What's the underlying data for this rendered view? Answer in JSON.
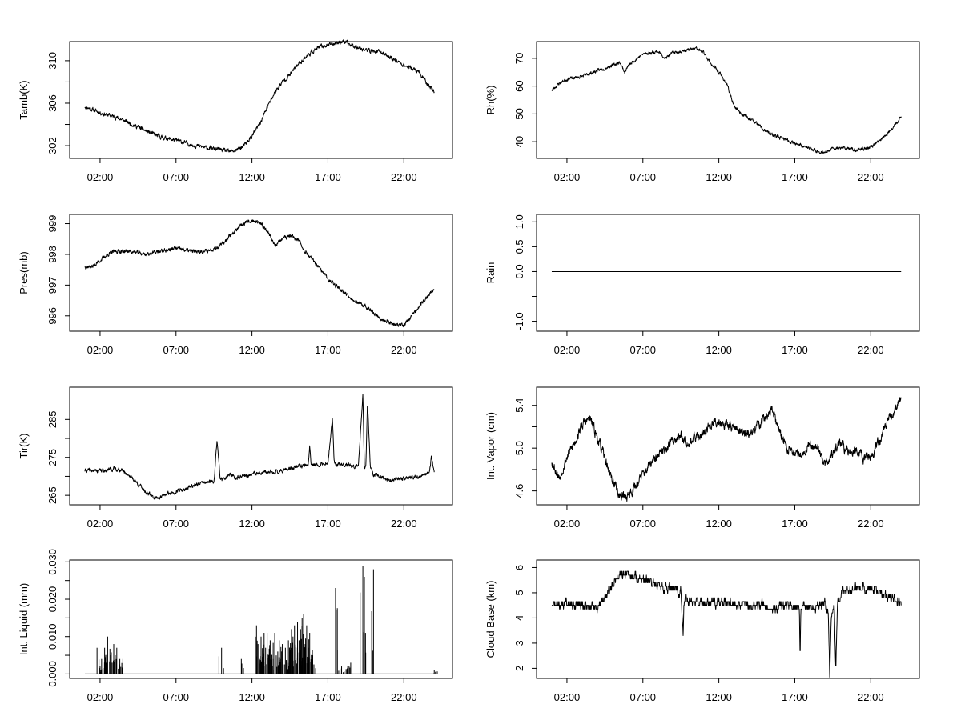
{
  "chart_data": [
    {
      "type": "line",
      "ylabel": "Tamb(K)",
      "xlim": [
        0,
        25.2
      ],
      "ylim": [
        300.8,
        311.8
      ],
      "x_ticks": [
        {
          "v": 2,
          "label": "02:00"
        },
        {
          "v": 7,
          "label": "07:00"
        },
        {
          "v": 12,
          "label": "12:00"
        },
        {
          "v": 17,
          "label": "17:00"
        },
        {
          "v": 22,
          "label": "22:00"
        }
      ],
      "y_ticks": [
        {
          "v": 302,
          "label": "302"
        },
        {
          "v": 304,
          "label": ""
        },
        {
          "v": 306,
          "label": "306"
        },
        {
          "v": 308,
          "label": ""
        },
        {
          "v": 310,
          "label": "310"
        }
      ],
      "x": [
        1.0,
        2.0,
        3.0,
        4.0,
        5.0,
        6.0,
        7.0,
        8.0,
        9.0,
        10.0,
        10.5,
        11.0,
        11.5,
        12.0,
        12.5,
        13.0,
        13.5,
        14.0,
        14.5,
        15.0,
        15.5,
        16.0,
        16.5,
        17.0,
        17.5,
        18.0,
        18.5,
        19.0,
        19.5,
        20.0,
        20.5,
        21.0,
        21.5,
        22.0,
        22.5,
        23.0,
        23.5,
        24.0
      ],
      "y": [
        305.7,
        305.1,
        304.7,
        304.1,
        303.4,
        302.8,
        302.5,
        302.1,
        301.8,
        301.6,
        301.4,
        301.6,
        302.0,
        302.9,
        304.0,
        305.6,
        307.0,
        308.0,
        308.7,
        309.6,
        310.3,
        310.9,
        311.3,
        311.5,
        311.7,
        311.8,
        311.5,
        311.3,
        311.0,
        310.9,
        310.8,
        310.4,
        310.0,
        309.6,
        309.3,
        308.9,
        307.9,
        307.1
      ],
      "noise": 0.15,
      "seed": 11
    },
    {
      "type": "line",
      "ylabel": "Rh(%)",
      "xlim": [
        0,
        25.2
      ],
      "ylim": [
        34,
        76
      ],
      "x_ticks": [
        {
          "v": 2,
          "label": "02:00"
        },
        {
          "v": 7,
          "label": "07:00"
        },
        {
          "v": 12,
          "label": "12:00"
        },
        {
          "v": 17,
          "label": "17:00"
        },
        {
          "v": 22,
          "label": "22:00"
        }
      ],
      "y_ticks": [
        {
          "v": 40,
          "label": "40"
        },
        {
          "v": 50,
          "label": "50"
        },
        {
          "v": 60,
          "label": "60"
        },
        {
          "v": 70,
          "label": "70"
        }
      ],
      "x": [
        1.0,
        1.5,
        2.0,
        3.0,
        4.0,
        5.0,
        5.5,
        5.8,
        6.0,
        6.5,
        7.0,
        8.0,
        8.5,
        9.0,
        10.0,
        10.5,
        11.0,
        11.5,
        12.0,
        12.5,
        13.0,
        13.5,
        14.0,
        14.5,
        15.0,
        15.5,
        16.0,
        16.5,
        17.0,
        17.5,
        18.0,
        18.5,
        19.0,
        19.5,
        20.0,
        20.5,
        21.0,
        21.5,
        22.0,
        22.5,
        23.0,
        23.5,
        24.0
      ],
      "y": [
        58.5,
        61.0,
        62.5,
        63.5,
        65.5,
        67.5,
        68.5,
        65.0,
        67.0,
        69.5,
        71.5,
        72.5,
        70.0,
        72.0,
        73.0,
        73.5,
        72.0,
        68.0,
        65.0,
        61.0,
        53.0,
        50.0,
        48.5,
        46.5,
        44.0,
        42.5,
        41.5,
        40.5,
        39.5,
        38.5,
        37.5,
        36.5,
        36.0,
        37.5,
        38.0,
        37.5,
        37.0,
        37.5,
        38.0,
        40.0,
        42.5,
        45.5,
        49.0
      ],
      "noise": 0.45,
      "seed": 23
    },
    {
      "type": "line",
      "ylabel": "Pres(mb)",
      "xlim": [
        0,
        25.2
      ],
      "ylim": [
        995.5,
        999.3
      ],
      "x_ticks": [
        {
          "v": 2,
          "label": "02:00"
        },
        {
          "v": 7,
          "label": "07:00"
        },
        {
          "v": 12,
          "label": "12:00"
        },
        {
          "v": 17,
          "label": "17:00"
        },
        {
          "v": 22,
          "label": "22:00"
        }
      ],
      "y_ticks": [
        {
          "v": 996,
          "label": "996"
        },
        {
          "v": 997,
          "label": "997"
        },
        {
          "v": 998,
          "label": "998"
        },
        {
          "v": 999,
          "label": "999"
        }
      ],
      "x": [
        1.0,
        1.5,
        2.0,
        2.5,
        3.0,
        4.0,
        5.0,
        6.0,
        7.0,
        8.0,
        9.0,
        10.0,
        10.5,
        11.0,
        11.5,
        12.0,
        12.5,
        13.0,
        13.5,
        14.0,
        14.5,
        15.0,
        15.5,
        16.0,
        16.5,
        17.0,
        17.5,
        18.0,
        18.5,
        19.0,
        19.5,
        20.0,
        20.5,
        21.0,
        21.5,
        22.0,
        22.5,
        23.0,
        23.5,
        24.0
      ],
      "y": [
        997.6,
        997.6,
        997.8,
        998.0,
        998.1,
        998.1,
        998.0,
        998.1,
        998.2,
        998.1,
        998.1,
        998.3,
        998.6,
        998.8,
        999.0,
        999.1,
        999.0,
        998.8,
        998.3,
        998.5,
        998.6,
        998.5,
        998.1,
        997.8,
        997.5,
        997.2,
        997.0,
        996.8,
        996.6,
        996.4,
        996.3,
        996.1,
        995.9,
        995.8,
        995.7,
        995.7,
        996.0,
        996.3,
        996.6,
        996.9
      ],
      "noise": 0.05,
      "seed": 37
    },
    {
      "type": "line",
      "ylabel": "Rain",
      "xlim": [
        0,
        25.2
      ],
      "ylim": [
        -1.2,
        1.15
      ],
      "x_ticks": [
        {
          "v": 2,
          "label": "02:00"
        },
        {
          "v": 7,
          "label": "07:00"
        },
        {
          "v": 12,
          "label": "12:00"
        },
        {
          "v": 17,
          "label": "17:00"
        },
        {
          "v": 22,
          "label": "22:00"
        }
      ],
      "y_ticks": [
        {
          "v": -1.0,
          "label": "-1.0"
        },
        {
          "v": -0.5,
          "label": ""
        },
        {
          "v": 0.0,
          "label": "0.0"
        },
        {
          "v": 0.5,
          "label": "0.5"
        },
        {
          "v": 1.0,
          "label": "1.0"
        }
      ],
      "x": [
        1.0,
        24.0
      ],
      "y": [
        0,
        0
      ],
      "noise": 0,
      "seed": 1
    },
    {
      "type": "line",
      "ylabel": "Tir(K)",
      "xlim": [
        0,
        25.2
      ],
      "ylim": [
        262.5,
        293.5
      ],
      "x_ticks": [
        {
          "v": 2,
          "label": "02:00"
        },
        {
          "v": 7,
          "label": "07:00"
        },
        {
          "v": 12,
          "label": "12:00"
        },
        {
          "v": 17,
          "label": "17:00"
        },
        {
          "v": 22,
          "label": "22:00"
        }
      ],
      "y_ticks": [
        {
          "v": 265,
          "label": "265"
        },
        {
          "v": 270,
          "label": ""
        },
        {
          "v": 275,
          "label": "275"
        },
        {
          "v": 280,
          "label": ""
        },
        {
          "v": 285,
          "label": "285"
        }
      ],
      "x": [
        1.0,
        2.0,
        3.0,
        3.5,
        4.0,
        4.5,
        5.0,
        5.5,
        6.0,
        6.5,
        7.0,
        7.5,
        8.0,
        9.0,
        9.5,
        9.7,
        9.9,
        10.0,
        10.5,
        11.0,
        12.0,
        13.0,
        14.0,
        15.0,
        15.7,
        15.8,
        15.9,
        16.0,
        17.0,
        17.3,
        17.4,
        17.5,
        18.0,
        19.0,
        19.3,
        19.4,
        19.5,
        19.6,
        19.8,
        19.9,
        20.0,
        20.5,
        21.0,
        22.0,
        23.0,
        23.7,
        23.8,
        24.0
      ],
      "y": [
        271.5,
        271.5,
        272.0,
        271.5,
        270.0,
        268.0,
        266.0,
        264.5,
        264.5,
        265.5,
        266.0,
        266.5,
        267.5,
        268.5,
        268.5,
        279.5,
        270.0,
        269.0,
        270.5,
        269.5,
        270.5,
        271.0,
        271.5,
        272.5,
        273.0,
        278.5,
        273.0,
        273.0,
        273.5,
        285.5,
        274.0,
        273.0,
        273.0,
        272.5,
        291.5,
        272.0,
        272.5,
        290.0,
        272.0,
        271.0,
        270.5,
        270.0,
        269.0,
        269.5,
        270.0,
        271.0,
        275.0,
        271.0
      ],
      "noise": 0.4,
      "seed": 41
    },
    {
      "type": "line",
      "ylabel": "Int. Vapor (cm)",
      "xlim": [
        0,
        25.2
      ],
      "ylim": [
        4.47,
        5.57
      ],
      "x_ticks": [
        {
          "v": 2,
          "label": "02:00"
        },
        {
          "v": 7,
          "label": "07:00"
        },
        {
          "v": 12,
          "label": "12:00"
        },
        {
          "v": 17,
          "label": "17:00"
        },
        {
          "v": 22,
          "label": "22:00"
        }
      ],
      "y_ticks": [
        {
          "v": 4.6,
          "label": "4.6"
        },
        {
          "v": 4.8,
          "label": ""
        },
        {
          "v": 5.0,
          "label": "5.0"
        },
        {
          "v": 5.2,
          "label": ""
        },
        {
          "v": 5.4,
          "label": "5.4"
        }
      ],
      "x": [
        1.0,
        1.5,
        2.0,
        2.5,
        3.0,
        3.5,
        4.0,
        4.5,
        5.0,
        5.5,
        6.0,
        6.5,
        7.0,
        7.5,
        8.0,
        8.5,
        9.0,
        9.5,
        10.0,
        10.5,
        11.0,
        11.5,
        12.0,
        12.5,
        13.0,
        13.5,
        14.0,
        14.5,
        15.0,
        15.5,
        16.0,
        16.5,
        17.0,
        17.5,
        18.0,
        18.5,
        19.0,
        19.5,
        20.0,
        20.5,
        21.0,
        21.5,
        22.0,
        22.5,
        23.0,
        23.5,
        24.0
      ],
      "y": [
        4.88,
        4.72,
        4.92,
        5.05,
        5.22,
        5.28,
        5.1,
        4.9,
        4.7,
        4.55,
        4.55,
        4.65,
        4.75,
        4.85,
        4.92,
        5.0,
        5.08,
        5.12,
        5.05,
        5.1,
        5.15,
        5.22,
        5.25,
        5.22,
        5.2,
        5.15,
        5.12,
        5.2,
        5.28,
        5.35,
        5.15,
        5.0,
        4.95,
        4.95,
        5.05,
        5.0,
        4.85,
        4.95,
        5.05,
        4.95,
        5.0,
        4.9,
        4.92,
        5.05,
        5.2,
        5.35,
        5.45
      ],
      "noise": 0.035,
      "seed": 53
    },
    {
      "type": "bar",
      "ylabel": "Int. Liquid (mm)",
      "xlim": [
        0,
        25.2
      ],
      "ylim": [
        -0.0012,
        0.0305
      ],
      "x_ticks": [
        {
          "v": 2,
          "label": "02:00"
        },
        {
          "v": 7,
          "label": "07:00"
        },
        {
          "v": 12,
          "label": "12:00"
        },
        {
          "v": 17,
          "label": "17:00"
        },
        {
          "v": 22,
          "label": "22:00"
        }
      ],
      "y_ticks": [
        {
          "v": 0.0,
          "label": "0.000"
        },
        {
          "v": 0.005,
          "label": ""
        },
        {
          "v": 0.01,
          "label": "0.010"
        },
        {
          "v": 0.015,
          "label": ""
        },
        {
          "v": 0.02,
          "label": "0.020"
        },
        {
          "v": 0.025,
          "label": ""
        },
        {
          "v": 0.03,
          "label": "0.030"
        }
      ],
      "baseline_x": [
        1.0,
        24.0
      ],
      "x": [
        1.8,
        2.0,
        2.1,
        2.3,
        2.4,
        2.5,
        2.7,
        2.8,
        2.9,
        3.0,
        3.1,
        3.3,
        3.5,
        10.0,
        11.3,
        12.3,
        12.4,
        12.5,
        12.6,
        12.7,
        12.8,
        12.9,
        13.0,
        13.1,
        13.2,
        13.4,
        13.5,
        13.7,
        13.8,
        13.9,
        14.0,
        14.2,
        14.4,
        14.5,
        14.6,
        14.7,
        14.8,
        14.9,
        15.0,
        15.1,
        15.2,
        15.3,
        15.4,
        15.5,
        15.6,
        15.7,
        15.8,
        16.0,
        17.5,
        17.9,
        18.3,
        18.5,
        19.3,
        19.4,
        20.0,
        24.0
      ],
      "y": [
        0.007,
        0.002,
        0.004,
        0.007,
        0.003,
        0.01,
        0.005,
        0.003,
        0.008,
        0.005,
        0.007,
        0.004,
        0.004,
        0.007,
        0.004,
        0.013,
        0.008,
        0.004,
        0.01,
        0.006,
        0.011,
        0.007,
        0.011,
        0.005,
        0.009,
        0.004,
        0.011,
        0.006,
        0.009,
        0.004,
        0.008,
        0.007,
        0.009,
        0.006,
        0.012,
        0.01,
        0.013,
        0.007,
        0.014,
        0.009,
        0.012,
        0.015,
        0.016,
        0.008,
        0.013,
        0.007,
        0.011,
        0.005,
        0.023,
        0.002,
        0.002,
        0.003,
        0.029,
        0.026,
        0.028,
        0.001
      ],
      "seed": 61
    },
    {
      "type": "line",
      "ylabel": "Cloud Base (km)",
      "xlim": [
        0,
        25.2
      ],
      "ylim": [
        1.6,
        6.3
      ],
      "x_ticks": [
        {
          "v": 2,
          "label": "02:00"
        },
        {
          "v": 7,
          "label": "07:00"
        },
        {
          "v": 12,
          "label": "12:00"
        },
        {
          "v": 17,
          "label": "17:00"
        },
        {
          "v": 22,
          "label": "22:00"
        }
      ],
      "y_ticks": [
        {
          "v": 2,
          "label": "2"
        },
        {
          "v": 3,
          "label": "3"
        },
        {
          "v": 4,
          "label": "4"
        },
        {
          "v": 5,
          "label": "5"
        },
        {
          "v": 6,
          "label": "6"
        }
      ],
      "x": [
        1.0,
        2.0,
        3.0,
        4.0,
        4.5,
        5.0,
        5.5,
        6.0,
        6.5,
        7.0,
        7.5,
        8.0,
        8.5,
        9.0,
        9.5,
        9.65,
        9.7,
        9.8,
        10.0,
        11.0,
        12.0,
        13.0,
        14.0,
        15.0,
        15.5,
        16.0,
        17.0,
        17.3,
        17.35,
        17.4,
        18.0,
        18.5,
        19.0,
        19.2,
        19.3,
        19.4,
        19.6,
        19.7,
        19.8,
        19.9,
        20.0,
        20.5,
        21.0,
        22.0,
        22.5,
        23.0,
        23.5,
        24.0
      ],
      "y": [
        4.5,
        4.6,
        4.5,
        4.4,
        4.8,
        5.3,
        5.8,
        5.7,
        5.6,
        5.5,
        5.4,
        5.3,
        5.2,
        5.1,
        5.0,
        3.3,
        4.5,
        4.8,
        4.7,
        4.6,
        4.6,
        4.6,
        4.5,
        4.5,
        4.3,
        4.5,
        4.4,
        4.4,
        2.5,
        4.4,
        4.4,
        4.4,
        4.6,
        4.2,
        1.8,
        4.1,
        4.4,
        2.0,
        4.5,
        4.7,
        5.0,
        5.1,
        5.2,
        5.2,
        5.1,
        4.9,
        4.8,
        4.6
      ],
      "noise": 0.13,
      "step": 0.15,
      "seed": 71
    }
  ]
}
